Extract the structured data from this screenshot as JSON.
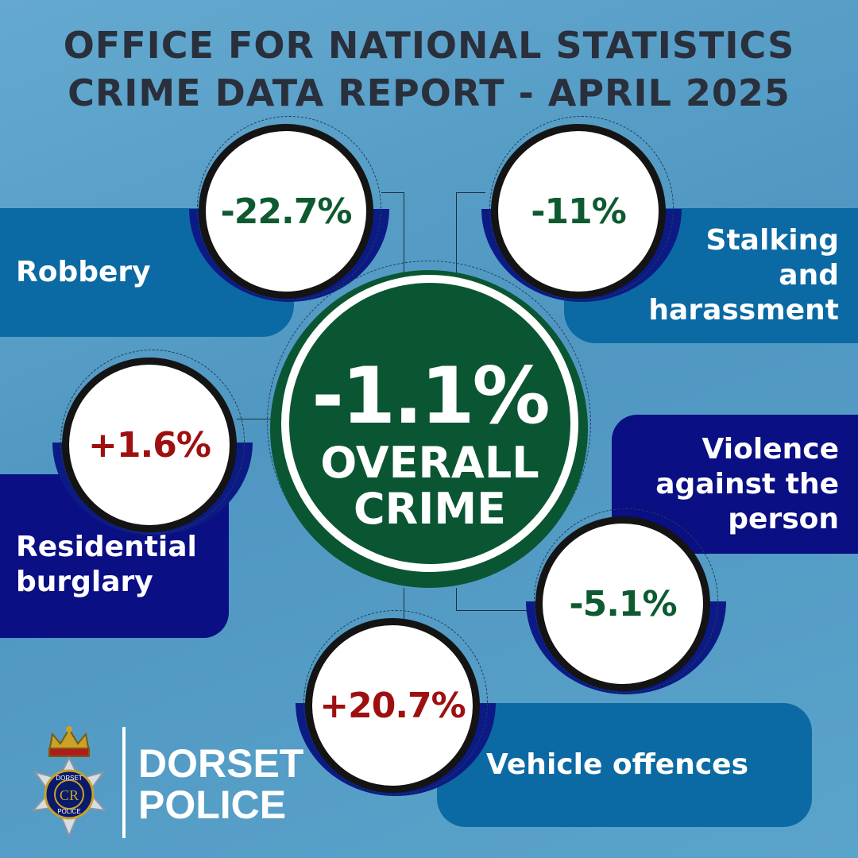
{
  "header": {
    "line1": "OFFICE FOR NATIONAL STATISTICS",
    "line2": "CRIME DATA REPORT - APRIL 2025"
  },
  "overall": {
    "value": "-1.1%",
    "line1": "OVERALL",
    "line2": "CRIME"
  },
  "stats": [
    {
      "label": "Robbery",
      "value": "-22.7%",
      "trend": "decrease"
    },
    {
      "label_lines": [
        "Stalking",
        "and",
        "harassment"
      ],
      "value": "-11%",
      "trend": "decrease"
    },
    {
      "label_lines": [
        "Residential",
        "burglary"
      ],
      "value": "+1.6%",
      "trend": "increase"
    },
    {
      "label_lines": [
        "Violence",
        "against the",
        "person"
      ],
      "value": "-5.1%",
      "trend": "decrease"
    },
    {
      "label": "Vehicle offences",
      "value": "+20.7%",
      "trend": "increase"
    }
  ],
  "logo": {
    "line1": "DORSET",
    "line2": "POLICE",
    "icon": "police-crest-icon",
    "crest_top_text": "DORSET",
    "crest_bottom_text": "POLICE",
    "cypher": "CR"
  },
  "colors": {
    "decrease": "#0e5a30",
    "increase": "#9e1010",
    "overall_circle": "#0a5632",
    "panel_light": "#0b6aa3",
    "panel_dark": "#0a0f84",
    "title": "#2a2f3c"
  }
}
